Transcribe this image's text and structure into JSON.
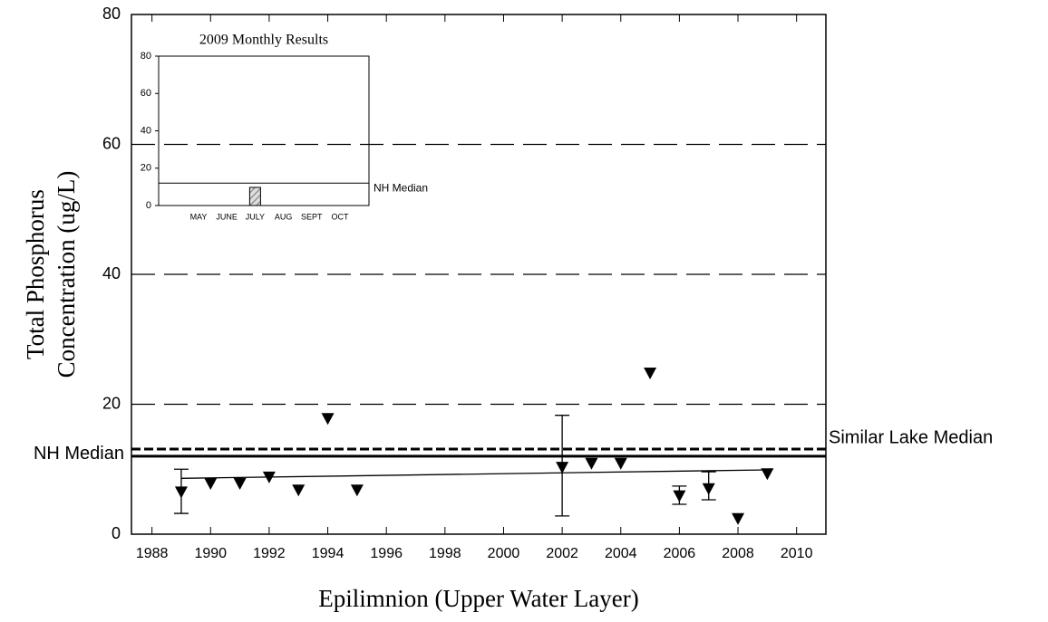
{
  "chart_data": [
    {
      "type": "scatter",
      "y_label": [
        "Total Phosphorus",
        "Concentration (ug/L)"
      ],
      "x_label": "Epilimnion (Upper Water Layer)",
      "x": [
        1989,
        1990,
        1991,
        1992,
        1993,
        1994,
        1995,
        2002,
        2003,
        2004,
        2005,
        2006,
        2007,
        2008,
        2009
      ],
      "values": [
        6.5,
        7.8,
        7.8,
        8.8,
        6.8,
        17.8,
        6.8,
        10.3,
        10.9,
        10.9,
        24.8,
        5.9,
        7.0,
        2.4,
        9.3
      ],
      "error_low": [
        3.2,
        null,
        null,
        null,
        null,
        null,
        null,
        2.8,
        null,
        null,
        null,
        4.6,
        5.3,
        null,
        null
      ],
      "error_high": [
        10.0,
        null,
        null,
        null,
        null,
        null,
        null,
        18.3,
        null,
        null,
        null,
        7.4,
        9.6,
        null,
        null
      ],
      "color": "#000000",
      "trend": {
        "x": [
          1989,
          2009
        ],
        "values": [
          8.6,
          9.9
        ]
      },
      "reference_lines": [
        {
          "label": "NH Median",
          "value": 12.0,
          "style": "solid"
        },
        {
          "label": "Similar Lake Median",
          "value": 13.1,
          "style": "dashed"
        }
      ],
      "xlim": [
        1987.3,
        2011
      ],
      "xticks": [
        1988,
        1990,
        1992,
        1994,
        1996,
        1998,
        2000,
        2002,
        2004,
        2006,
        2008,
        2010
      ],
      "ylim": [
        0,
        80
      ],
      "yticks": [
        0,
        20,
        40,
        60,
        80
      ],
      "grid": "dashed"
    },
    {
      "type": "bar",
      "title": "2009 Monthly Results",
      "categories": [
        "MAY",
        "JUNE",
        "JULY",
        "AUG",
        "SEPT",
        "OCT"
      ],
      "values": [
        null,
        null,
        9.7,
        null,
        null,
        null
      ],
      "color": "#bbbbbb",
      "reference_lines": [
        {
          "label": "NH Median",
          "value": 12.0,
          "style": "solid"
        }
      ],
      "ylim": [
        0,
        80
      ],
      "yticks": [
        0,
        20,
        40,
        60,
        80
      ]
    }
  ]
}
